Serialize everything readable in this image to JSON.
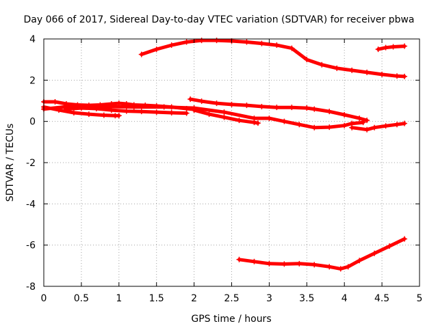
{
  "chart_data": {
    "type": "scatter",
    "title": "Day 066 of 2017, Sidereal Day-to-day VTEC variation (SDTVAR) for receiver pbwa",
    "xlabel": "GPS time / hours",
    "ylabel": "SDTVAR / TECUs",
    "xlim": [
      0,
      5
    ],
    "ylim": [
      -8,
      4
    ],
    "grid": true,
    "x_ticks": [
      "0",
      "0.5",
      "1",
      "1.5",
      "2",
      "2.5",
      "3",
      "3.5",
      "4",
      "4.5",
      "5"
    ],
    "y_ticks": [
      "-8",
      "-6",
      "-4",
      "-2",
      "0",
      "2",
      "4"
    ],
    "marker": "plus",
    "color": "#ff0000",
    "series": [
      {
        "points": [
          [
            1.3,
            3.25
          ],
          [
            1.5,
            3.5
          ],
          [
            1.7,
            3.7
          ],
          [
            1.9,
            3.85
          ],
          [
            2.1,
            3.93
          ],
          [
            2.3,
            3.93
          ],
          [
            2.5,
            3.9
          ],
          [
            2.7,
            3.85
          ],
          [
            2.9,
            3.78
          ],
          [
            3.1,
            3.7
          ],
          [
            3.3,
            3.55
          ],
          [
            3.5,
            3.0
          ],
          [
            3.7,
            2.75
          ],
          [
            3.9,
            2.58
          ],
          [
            4.1,
            2.48
          ],
          [
            4.3,
            2.38
          ],
          [
            4.5,
            2.28
          ],
          [
            4.7,
            2.2
          ],
          [
            4.8,
            2.18
          ]
        ]
      },
      {
        "points": [
          [
            4.45,
            3.5
          ],
          [
            4.55,
            3.58
          ],
          [
            4.65,
            3.62
          ],
          [
            4.8,
            3.65
          ]
        ]
      },
      {
        "points": [
          [
            0,
            0.95
          ],
          [
            0.15,
            0.95
          ],
          [
            0.3,
            0.85
          ],
          [
            0.45,
            0.8
          ],
          [
            0.6,
            0.78
          ],
          [
            0.75,
            0.8
          ],
          [
            0.9,
            0.85
          ],
          [
            1.0,
            0.88
          ],
          [
            1.1,
            0.85
          ],
          [
            1.2,
            0.8
          ],
          [
            1.35,
            0.78
          ],
          [
            1.5,
            0.75
          ],
          [
            1.7,
            0.7
          ],
          [
            1.9,
            0.62
          ],
          [
            2.0,
            0.58
          ]
        ]
      },
      {
        "points": [
          [
            0,
            0.7
          ],
          [
            0.2,
            0.55
          ],
          [
            0.4,
            0.42
          ],
          [
            0.6,
            0.35
          ],
          [
            0.8,
            0.3
          ],
          [
            0.95,
            0.28
          ],
          [
            1.0,
            0.28
          ]
        ]
      },
      {
        "points": [
          [
            0.3,
            0.6
          ],
          [
            0.5,
            0.65
          ],
          [
            0.7,
            0.62
          ],
          [
            0.9,
            0.55
          ],
          [
            1.1,
            0.5
          ],
          [
            1.3,
            0.48
          ],
          [
            1.5,
            0.45
          ],
          [
            1.7,
            0.42
          ],
          [
            1.9,
            0.4
          ]
        ]
      },
      {
        "points": [
          [
            0,
            0.6
          ],
          [
            0.4,
            0.75
          ],
          [
            0.8,
            0.72
          ],
          [
            1.2,
            0.7
          ],
          [
            1.6,
            0.7
          ],
          [
            2.0,
            0.65
          ],
          [
            2.4,
            0.45
          ],
          [
            2.8,
            0.15
          ],
          [
            3.0,
            0.15
          ],
          [
            3.2,
            0.0
          ],
          [
            3.4,
            -0.15
          ],
          [
            3.6,
            -0.3
          ],
          [
            3.8,
            -0.28
          ],
          [
            4.0,
            -0.2
          ],
          [
            4.1,
            -0.1
          ],
          [
            4.25,
            -0.05
          ]
        ]
      },
      {
        "points": [
          [
            2.0,
            0.55
          ],
          [
            2.2,
            0.35
          ],
          [
            2.4,
            0.2
          ],
          [
            2.6,
            0.05
          ],
          [
            2.8,
            -0.05
          ],
          [
            2.85,
            -0.08
          ]
        ]
      },
      {
        "points": [
          [
            1.95,
            1.08
          ],
          [
            2.1,
            0.98
          ],
          [
            2.3,
            0.88
          ],
          [
            2.5,
            0.82
          ],
          [
            2.7,
            0.78
          ],
          [
            2.9,
            0.72
          ],
          [
            3.1,
            0.68
          ],
          [
            3.3,
            0.68
          ],
          [
            3.5,
            0.65
          ],
          [
            3.6,
            0.6
          ],
          [
            3.8,
            0.48
          ],
          [
            4.0,
            0.32
          ],
          [
            4.2,
            0.15
          ],
          [
            4.3,
            0.05
          ]
        ]
      },
      {
        "points": [
          [
            4.1,
            -0.3
          ],
          [
            4.3,
            -0.4
          ],
          [
            4.4,
            -0.3
          ],
          [
            4.55,
            -0.22
          ],
          [
            4.7,
            -0.15
          ],
          [
            4.8,
            -0.1
          ]
        ]
      },
      {
        "points": [
          [
            2.6,
            -6.7
          ],
          [
            2.8,
            -6.8
          ],
          [
            3.0,
            -6.9
          ],
          [
            3.2,
            -6.92
          ],
          [
            3.4,
            -6.9
          ],
          [
            3.6,
            -6.95
          ],
          [
            3.8,
            -7.05
          ],
          [
            3.95,
            -7.15
          ],
          [
            4.05,
            -7.05
          ],
          [
            4.2,
            -6.75
          ],
          [
            4.4,
            -6.4
          ],
          [
            4.6,
            -6.05
          ],
          [
            4.8,
            -5.7
          ]
        ]
      }
    ]
  }
}
